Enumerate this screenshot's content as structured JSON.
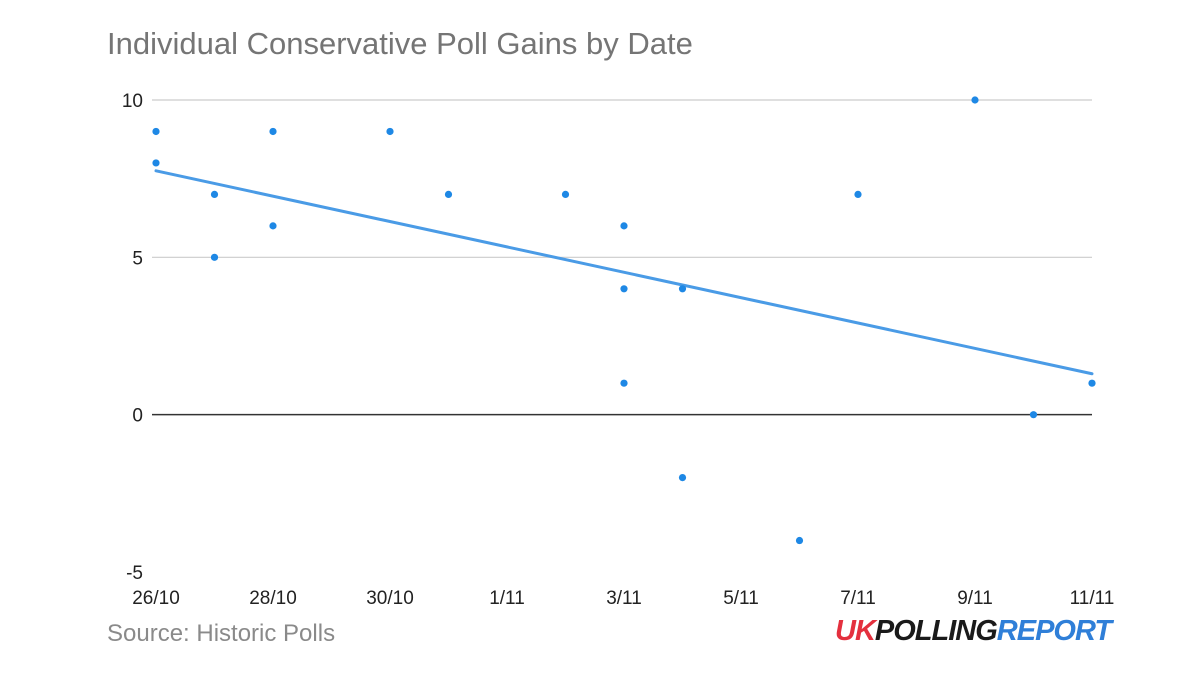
{
  "chart_data": {
    "type": "scatter",
    "title": "Individual Conservative Poll Gains by Date",
    "xlabel": "",
    "ylabel": "",
    "x_ticks": [
      "26/10",
      "28/10",
      "30/10",
      "1/11",
      "3/11",
      "5/11",
      "7/11",
      "9/11",
      "11/11"
    ],
    "y_ticks": [
      10,
      5,
      0,
      -5
    ],
    "xlim": [
      "26/10",
      "11/11"
    ],
    "ylim": [
      -5,
      10
    ],
    "grid": true,
    "legend": "none",
    "series": [
      {
        "points": [
          {
            "x": "26/10",
            "y": 9
          },
          {
            "x": "26/10",
            "y": 8
          },
          {
            "x": "27/10",
            "y": 7
          },
          {
            "x": "27/10",
            "y": 5
          },
          {
            "x": "28/10",
            "y": 9
          },
          {
            "x": "28/10",
            "y": 6
          },
          {
            "x": "30/10",
            "y": 9
          },
          {
            "x": "31/10",
            "y": 7
          },
          {
            "x": "2/11",
            "y": 7
          },
          {
            "x": "3/11",
            "y": 6
          },
          {
            "x": "3/11",
            "y": 4
          },
          {
            "x": "3/11",
            "y": 1
          },
          {
            "x": "4/11",
            "y": 4
          },
          {
            "x": "4/11",
            "y": -2
          },
          {
            "x": "6/11",
            "y": -4
          },
          {
            "x": "7/11",
            "y": 7
          },
          {
            "x": "9/11",
            "y": 10
          },
          {
            "x": "10/11",
            "y": 0
          },
          {
            "x": "11/11",
            "y": 1
          }
        ]
      }
    ],
    "trendline": {
      "type": "linear",
      "start": {
        "x": "26/10",
        "y": 7.75
      },
      "end": {
        "x": "11/11",
        "y": 1.3
      }
    },
    "colors": {
      "points": "#1e88e5",
      "trendline": "#4a9be6",
      "grid": "#cccccc",
      "zero_line": "#333333"
    }
  },
  "footer": {
    "source": "Source: Historic Polls",
    "logo_uk": "UK",
    "logo_polling": "POLLING",
    "logo_report": "REPORT"
  }
}
